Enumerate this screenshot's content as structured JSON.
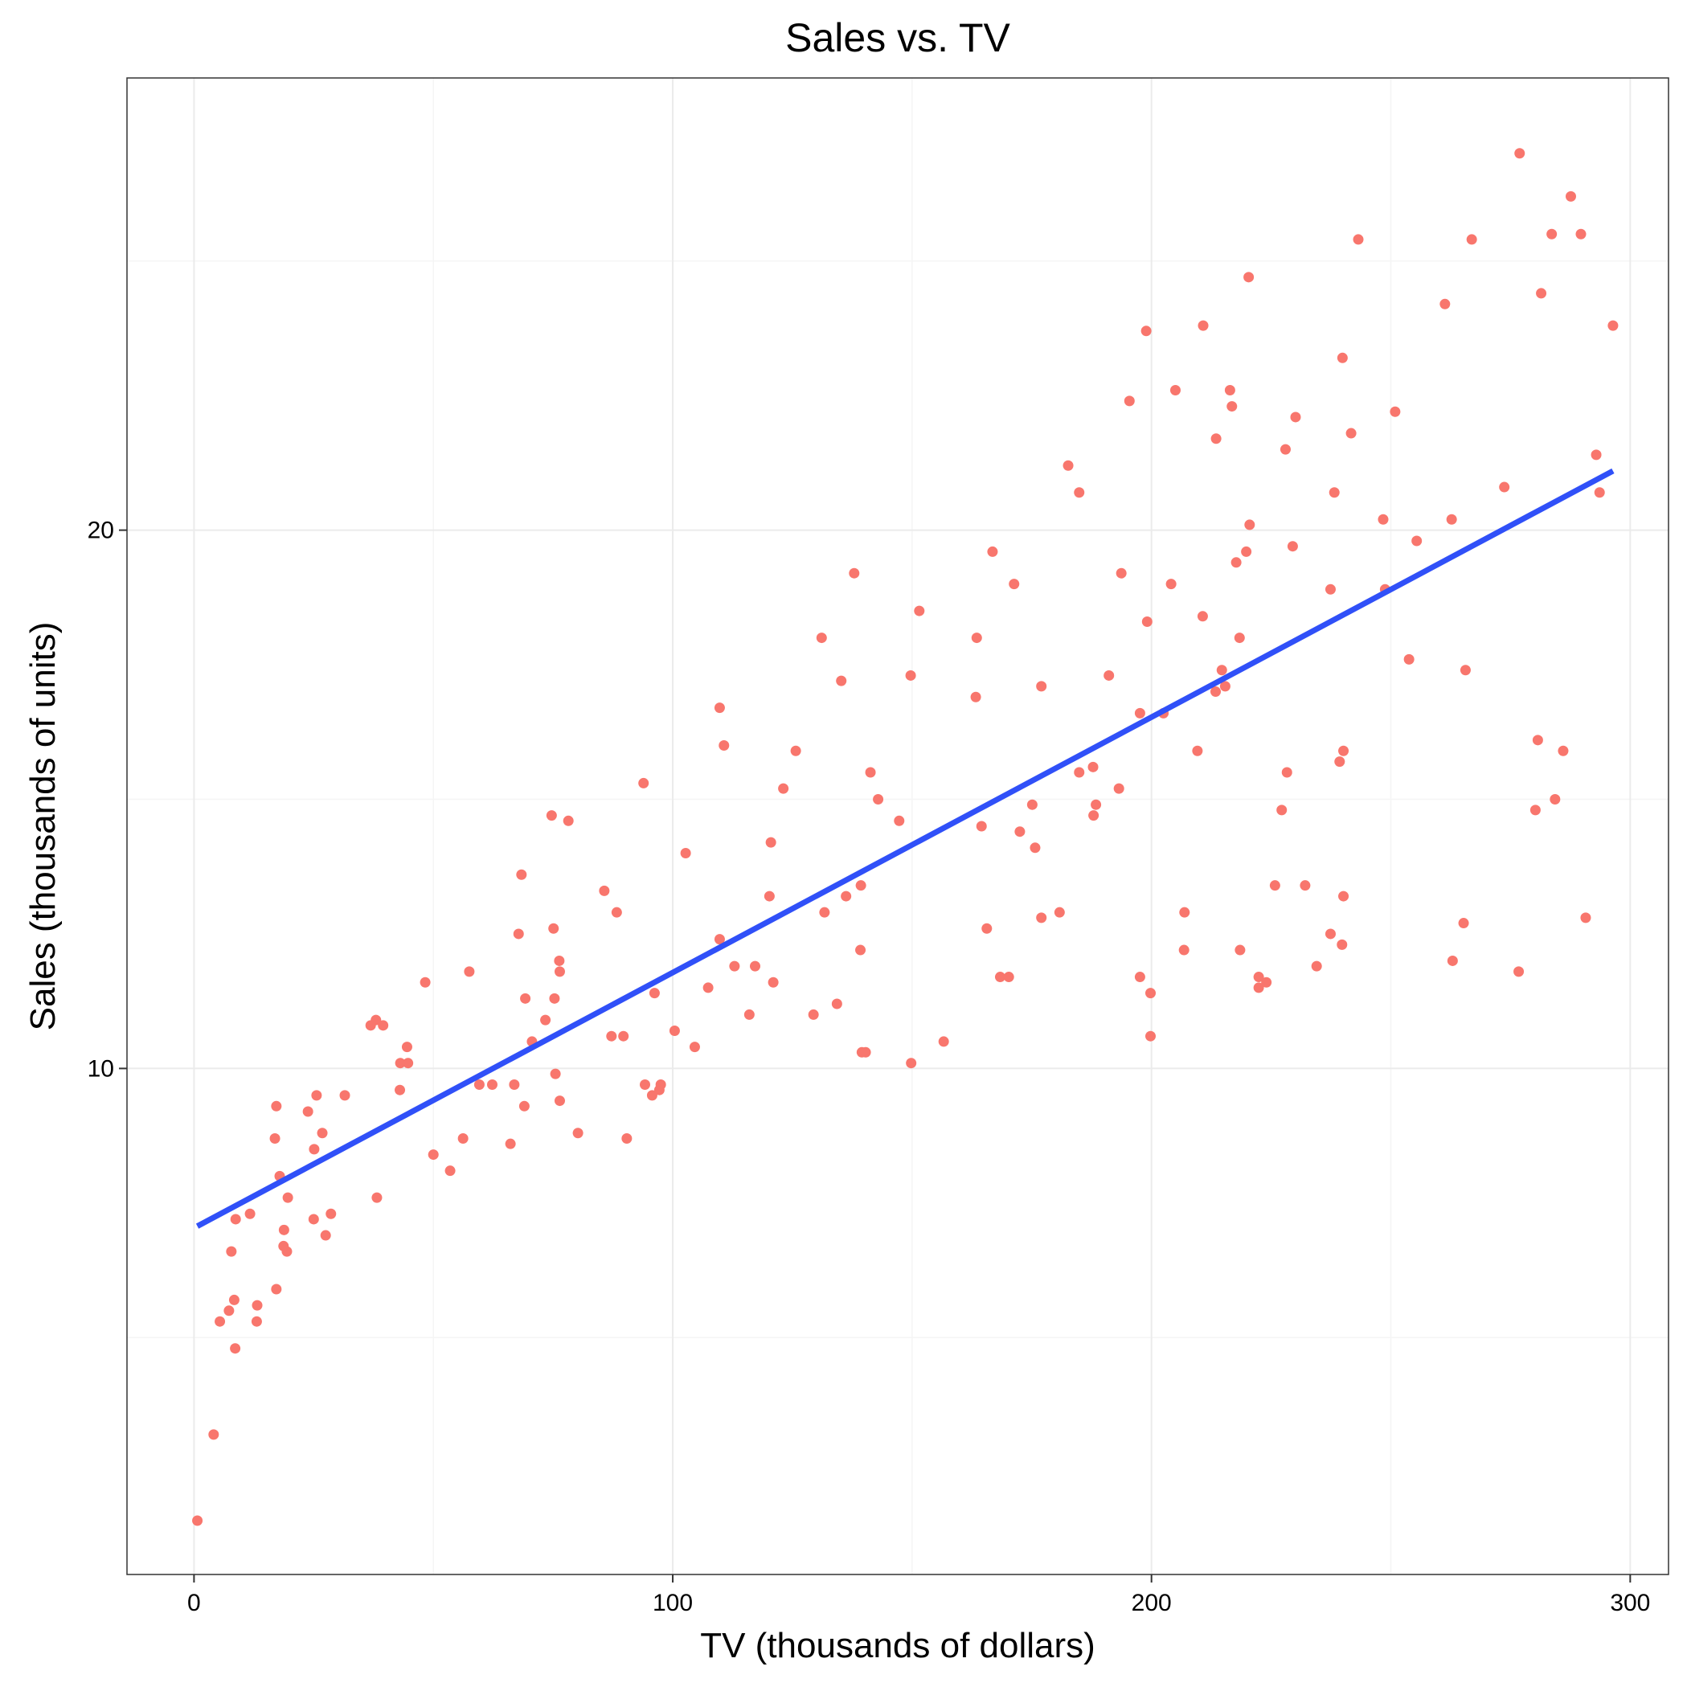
{
  "chart_data": {
    "type": "scatter",
    "title": "Sales vs. TV",
    "xlabel": "TV (thousands of dollars)",
    "ylabel": "Sales (thousands of units)",
    "xlim": [
      -14,
      308
    ],
    "ylim": [
      0.6,
      28.4
    ],
    "x_ticks": [
      0,
      100,
      200,
      300
    ],
    "y_ticks": [
      10,
      20
    ],
    "grid": true,
    "legend": "none",
    "colors": {
      "points": "#f8766d",
      "fit_line": "#3050f8"
    },
    "fit_line": {
      "x": [
        0.7,
        296.4
      ],
      "y": [
        7.07,
        21.1
      ]
    },
    "points": [
      [
        230.1,
        22.1
      ],
      [
        44.5,
        10.4
      ],
      [
        17.2,
        9.3
      ],
      [
        151.5,
        18.5
      ],
      [
        180.8,
        12.9
      ],
      [
        8.7,
        7.2
      ],
      [
        57.5,
        11.8
      ],
      [
        120.2,
        13.2
      ],
      [
        8.6,
        4.8
      ],
      [
        199.8,
        10.6
      ],
      [
        66.1,
        8.6
      ],
      [
        214.7,
        17.4
      ],
      [
        23.8,
        9.2
      ],
      [
        97.5,
        9.7
      ],
      [
        204.1,
        19.0
      ],
      [
        195.4,
        22.4
      ],
      [
        67.8,
        12.5
      ],
      [
        281.4,
        24.4
      ],
      [
        69.2,
        11.3
      ],
      [
        147.3,
        14.6
      ],
      [
        218.4,
        18.0
      ],
      [
        237.4,
        12.5
      ],
      [
        13.2,
        5.6
      ],
      [
        228.3,
        15.5
      ],
      [
        62.3,
        9.7
      ],
      [
        262.9,
        12.0
      ],
      [
        142.9,
        15.0
      ],
      [
        240.1,
        15.9
      ],
      [
        248.8,
        18.9
      ],
      [
        70.6,
        10.5
      ],
      [
        292.9,
        21.4
      ],
      [
        112.9,
        11.9
      ],
      [
        97.2,
        9.6
      ],
      [
        265.6,
        17.4
      ],
      [
        95.7,
        9.5
      ],
      [
        290.7,
        12.8
      ],
      [
        266.9,
        25.4
      ],
      [
        74.7,
        14.7
      ],
      [
        43.1,
        10.1
      ],
      [
        228.0,
        21.5
      ],
      [
        202.5,
        16.6
      ],
      [
        177.0,
        17.1
      ],
      [
        293.6,
        20.7
      ],
      [
        206.9,
        12.9
      ],
      [
        25.1,
        8.5
      ],
      [
        175.1,
        14.9
      ],
      [
        89.7,
        10.6
      ],
      [
        239.9,
        23.2
      ],
      [
        227.2,
        14.8
      ],
      [
        66.9,
        9.7
      ],
      [
        199.8,
        11.4
      ],
      [
        100.4,
        10.7
      ],
      [
        216.4,
        22.6
      ],
      [
        182.6,
        21.2
      ],
      [
        262.7,
        20.2
      ],
      [
        198.9,
        23.7
      ],
      [
        7.3,
        5.5
      ],
      [
        136.2,
        13.2
      ],
      [
        210.8,
        23.8
      ],
      [
        210.7,
        18.4
      ],
      [
        53.5,
        8.1
      ],
      [
        261.3,
        24.2
      ],
      [
        239.3,
        15.7
      ],
      [
        102.7,
        14.0
      ],
      [
        131.1,
        18.0
      ],
      [
        69.0,
        9.3
      ],
      [
        31.5,
        9.5
      ],
      [
        139.3,
        13.4
      ],
      [
        237.4,
        18.9
      ],
      [
        216.8,
        22.3
      ],
      [
        199.1,
        18.3
      ],
      [
        109.8,
        12.4
      ],
      [
        26.8,
        8.8
      ],
      [
        129.4,
        11.0
      ],
      [
        213.4,
        17.0
      ],
      [
        16.9,
        8.7
      ],
      [
        27.5,
        6.9
      ],
      [
        120.5,
        14.2
      ],
      [
        5.4,
        5.3
      ],
      [
        116.0,
        11.0
      ],
      [
        76.4,
        11.8
      ],
      [
        239.8,
        12.3
      ],
      [
        75.3,
        11.3
      ],
      [
        68.4,
        13.6
      ],
      [
        213.5,
        21.7
      ],
      [
        193.2,
        15.2
      ],
      [
        76.3,
        12.0
      ],
      [
        110.7,
        16.0
      ],
      [
        88.3,
        12.9
      ],
      [
        109.8,
        16.7
      ],
      [
        134.3,
        11.2
      ],
      [
        28.6,
        7.3
      ],
      [
        217.7,
        19.4
      ],
      [
        250.9,
        22.2
      ],
      [
        107.4,
        11.5
      ],
      [
        163.3,
        16.9
      ],
      [
        197.6,
        11.7
      ],
      [
        184.9,
        15.5
      ],
      [
        289.7,
        25.5
      ],
      [
        135.2,
        17.2
      ],
      [
        222.4,
        11.7
      ],
      [
        296.4,
        23.8
      ],
      [
        280.2,
        14.8
      ],
      [
        187.9,
        14.7
      ],
      [
        238.2,
        20.7
      ],
      [
        137.9,
        19.2
      ],
      [
        25.0,
        7.2
      ],
      [
        90.4,
        8.7
      ],
      [
        13.1,
        5.3
      ],
      [
        255.4,
        19.8
      ],
      [
        225.8,
        13.4
      ],
      [
        241.7,
        21.8
      ],
      [
        175.7,
        14.1
      ],
      [
        209.6,
        15.9
      ],
      [
        78.2,
        14.6
      ],
      [
        75.1,
        12.6
      ],
      [
        139.2,
        12.2
      ],
      [
        76.4,
        9.4
      ],
      [
        125.7,
        15.9
      ],
      [
        19.4,
        6.6
      ],
      [
        141.3,
        15.5
      ],
      [
        18.8,
        7.0
      ],
      [
        224.0,
        11.6
      ],
      [
        123.1,
        15.2
      ],
      [
        229.5,
        19.7
      ],
      [
        87.2,
        10.6
      ],
      [
        7.8,
        6.6
      ],
      [
        80.2,
        8.8
      ],
      [
        220.3,
        24.7
      ],
      [
        59.6,
        9.7
      ],
      [
        0.7,
        1.6
      ],
      [
        265.2,
        12.7
      ],
      [
        8.4,
        5.7
      ],
      [
        219.8,
        19.6
      ],
      [
        36.9,
        10.8
      ],
      [
        48.3,
        11.6
      ],
      [
        25.6,
        9.5
      ],
      [
        273.7,
        20.8
      ],
      [
        43.0,
        9.6
      ],
      [
        184.9,
        20.7
      ],
      [
        73.4,
        10.9
      ],
      [
        193.7,
        19.2
      ],
      [
        220.5,
        20.1
      ],
      [
        104.6,
        10.4
      ],
      [
        96.2,
        11.4
      ],
      [
        140.3,
        10.3
      ],
      [
        240.1,
        13.2
      ],
      [
        243.2,
        25.4
      ],
      [
        38.0,
        10.9
      ],
      [
        44.7,
        10.1
      ],
      [
        280.7,
        16.1
      ],
      [
        121.0,
        11.6
      ],
      [
        197.6,
        16.6
      ],
      [
        171.3,
        19.0
      ],
      [
        187.8,
        15.6
      ],
      [
        4.1,
        3.2
      ],
      [
        93.9,
        15.3
      ],
      [
        149.8,
        10.1
      ],
      [
        11.7,
        7.3
      ],
      [
        131.7,
        12.9
      ],
      [
        172.5,
        14.4
      ],
      [
        85.7,
        13.3
      ],
      [
        188.4,
        14.9
      ],
      [
        163.5,
        18.0
      ],
      [
        117.2,
        11.9
      ],
      [
        234.5,
        11.9
      ],
      [
        17.9,
        8.0
      ],
      [
        206.8,
        12.2
      ],
      [
        215.4,
        17.1
      ],
      [
        284.3,
        15.0
      ],
      [
        50.0,
        8.4
      ],
      [
        164.5,
        14.5
      ],
      [
        19.6,
        7.6
      ],
      [
        168.4,
        11.7
      ],
      [
        222.4,
        11.5
      ],
      [
        276.9,
        27.0
      ],
      [
        248.4,
        20.2
      ],
      [
        170.2,
        11.7
      ],
      [
        276.7,
        11.8
      ],
      [
        165.6,
        12.6
      ],
      [
        156.6,
        10.5
      ],
      [
        218.5,
        12.2
      ],
      [
        56.2,
        8.7
      ],
      [
        287.6,
        26.2
      ],
      [
        253.8,
        17.6
      ],
      [
        205.0,
        22.6
      ],
      [
        139.5,
        10.3
      ],
      [
        191.1,
        17.3
      ],
      [
        286.0,
        15.9
      ],
      [
        18.7,
        6.7
      ],
      [
        39.5,
        10.8
      ],
      [
        75.5,
        9.9
      ],
      [
        17.2,
        5.9
      ],
      [
        166.8,
        19.6
      ],
      [
        149.7,
        17.3
      ],
      [
        38.2,
        7.6
      ],
      [
        94.2,
        9.7
      ],
      [
        177.0,
        12.8
      ],
      [
        283.6,
        25.5
      ],
      [
        232.1,
        13.4
      ]
    ]
  }
}
